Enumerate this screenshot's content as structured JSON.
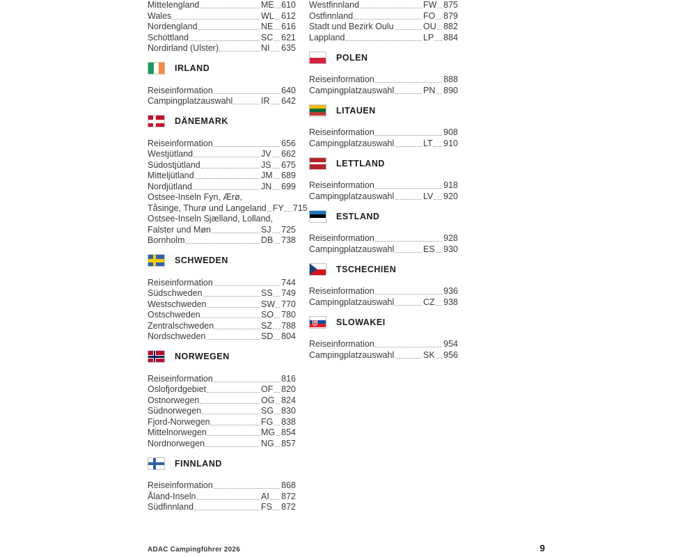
{
  "footer": {
    "left": "ADAC Campingführer 2026",
    "page": "9"
  },
  "colors": {
    "text": "#3a3a3a",
    "heading": "#1c1c1c",
    "leader_dots": "#8f8f8f",
    "footer": "#3b3b3b"
  },
  "flags": {
    "ireland": {
      "type": "vertical",
      "stripes": [
        "#169b62",
        "#ffffff",
        "#ff883e"
      ]
    },
    "denmark": {
      "type": "nordic",
      "bg": "#c8102e",
      "cross": "#ffffff"
    },
    "sweden": {
      "type": "nordic",
      "bg": "#2d63ad",
      "cross": "#fecc00"
    },
    "norway": {
      "type": "nordic",
      "bg": "#ba0c2f",
      "cross": "#ffffff",
      "inner_cross": "#00205b"
    },
    "finland": {
      "type": "nordic",
      "bg": "#ffffff",
      "cross": "#2d62a8"
    },
    "poland": {
      "type": "horizontal",
      "stripes": [
        "#ffffff",
        "#d4213d"
      ]
    },
    "lithuania": {
      "type": "horizontal",
      "stripes": [
        "#fdb913",
        "#046a38",
        "#be3a34"
      ]
    },
    "latvia": {
      "type": "horizontal",
      "stripes": [
        "#b5232b",
        "#ffffff",
        "#b5232b"
      ],
      "weights": [
        2,
        1,
        2
      ]
    },
    "estonia": {
      "type": "horizontal",
      "stripes": [
        "#1e73be",
        "#000000",
        "#ffffff"
      ]
    },
    "czech": {
      "type": "horizontal",
      "stripes": [
        "#ffffff",
        "#d7141a"
      ],
      "triangle": "#11457e"
    },
    "slovakia": {
      "type": "horizontal",
      "stripes": [
        "#ffffff",
        "#0b4ea2",
        "#ee1c25"
      ],
      "emblem": "#d01c2a"
    }
  },
  "columns": [
    {
      "sections": [
        {
          "rows": [
            {
              "label": "Mittelengland",
              "code": "ME",
              "page": "610"
            },
            {
              "label": "Wales",
              "code": "WL",
              "page": "612"
            },
            {
              "label": "Nordengland",
              "code": "NE",
              "page": "616"
            },
            {
              "label": "Schottland",
              "code": "SC",
              "page": "621"
            },
            {
              "label": "Nordirland (Ulster)",
              "code": "NI",
              "page": "635"
            }
          ]
        },
        {
          "heading": {
            "label": "IRLAND",
            "flag": "ireland"
          },
          "rows": [
            {
              "label": "Reiseinformation",
              "page": "640"
            },
            {
              "label": "Campingplatzauswahl",
              "code": "IR",
              "page": "642"
            }
          ]
        },
        {
          "heading": {
            "label": "DÄNEMARK",
            "flag": "denmark"
          },
          "rows": [
            {
              "label": "Reiseinformation",
              "page": "656"
            },
            {
              "label": "Westjütland",
              "code": "JV",
              "page": "662"
            },
            {
              "label": "Südostjütland",
              "code": "JS",
              "page": "675"
            },
            {
              "label": "Mitteljütland",
              "code": "JM",
              "page": "689"
            },
            {
              "label": "Nordjütland",
              "code": "JN",
              "page": "699"
            },
            {
              "label": "Ostsee-Inseln Fyn, Ærø,"
            },
            {
              "label": "Tåsinge, Thurø und Langeland",
              "code": "FY",
              "page": "715"
            },
            {
              "label": "Ostsee-Inseln Sjælland, Lolland,"
            },
            {
              "label": "Falster und Møn",
              "code": "SJ",
              "page": "725"
            },
            {
              "label": "Bornholm",
              "code": "DB",
              "page": "738"
            }
          ]
        },
        {
          "heading": {
            "label": "SCHWEDEN",
            "flag": "sweden"
          },
          "rows": [
            {
              "label": "Reiseinformation",
              "page": "744"
            },
            {
              "label": "Südschweden",
              "code": "SS",
              "page": "749"
            },
            {
              "label": "Westschweden",
              "code": "SW",
              "page": "770"
            },
            {
              "label": "Ostschweden",
              "code": "SO",
              "page": "780"
            },
            {
              "label": "Zentralschweden",
              "code": "SZ",
              "page": "788"
            },
            {
              "label": "Nordschweden",
              "code": "SD",
              "page": "804"
            }
          ]
        },
        {
          "heading": {
            "label": "NORWEGEN",
            "flag": "norway"
          },
          "rows": [
            {
              "label": "Reiseinformation",
              "page": "816"
            },
            {
              "label": "Oslofjordgebiet",
              "code": "OF",
              "page": "820"
            },
            {
              "label": "Ostnorwegen",
              "code": "OG",
              "page": "824"
            },
            {
              "label": "Südnorwegen",
              "code": "SG",
              "page": "830"
            },
            {
              "label": "Fjord-Norwegen",
              "code": "FG",
              "page": "838"
            },
            {
              "label": "Mittelnorwegen",
              "code": "MG",
              "page": "854"
            },
            {
              "label": "Nordnorwegen",
              "code": "NG",
              "page": "857"
            }
          ]
        },
        {
          "heading": {
            "label": "FINNLAND",
            "flag": "finland"
          },
          "rows": [
            {
              "label": "Reiseinformation",
              "page": "868"
            },
            {
              "label": "Åland-Inseln",
              "code": "AI",
              "page": "872"
            },
            {
              "label": "Südfinnland",
              "code": "FS",
              "page": "872"
            }
          ]
        }
      ]
    },
    {
      "sections": [
        {
          "rows": [
            {
              "label": "Westfinnland",
              "code": "FW",
              "page": "875"
            },
            {
              "label": "Ostfinnland",
              "code": "FO",
              "page": "879"
            },
            {
              "label": "Stadt und Bezirk Oulu",
              "code": "OU",
              "page": "882"
            },
            {
              "label": "Lappland",
              "code": "LP",
              "page": "884"
            }
          ]
        },
        {
          "heading": {
            "label": "POLEN",
            "flag": "poland"
          },
          "rows": [
            {
              "label": "Reiseinformation",
              "page": "888"
            },
            {
              "label": "Campingplatzauswahl",
              "code": "PN",
              "page": "890"
            }
          ]
        },
        {
          "heading": {
            "label": "LITAUEN",
            "flag": "lithuania"
          },
          "rows": [
            {
              "label": "Reiseinformation",
              "page": "908"
            },
            {
              "label": "Campingplatzauswahl",
              "code": "LT",
              "page": "910"
            }
          ]
        },
        {
          "heading": {
            "label": "LETTLAND",
            "flag": "latvia"
          },
          "rows": [
            {
              "label": "Reiseinformation",
              "page": "918"
            },
            {
              "label": "Campingplatzauswahl",
              "code": "LV",
              "page": "920"
            }
          ]
        },
        {
          "heading": {
            "label": "ESTLAND",
            "flag": "estonia"
          },
          "rows": [
            {
              "label": "Reiseinformation",
              "page": "928"
            },
            {
              "label": "Campingplatzauswahl",
              "code": "ES",
              "page": "930"
            }
          ]
        },
        {
          "heading": {
            "label": "TSCHECHIEN",
            "flag": "czech"
          },
          "rows": [
            {
              "label": "Reiseinformation",
              "page": "936"
            },
            {
              "label": "Campingplatzauswahl",
              "code": "CZ",
              "page": "938"
            }
          ]
        },
        {
          "heading": {
            "label": "SLOWAKEI",
            "flag": "slovakia"
          },
          "rows": [
            {
              "label": "Reiseinformation",
              "page": "954"
            },
            {
              "label": "Campingplatzauswahl",
              "code": "SK",
              "page": "956"
            }
          ]
        }
      ]
    }
  ]
}
